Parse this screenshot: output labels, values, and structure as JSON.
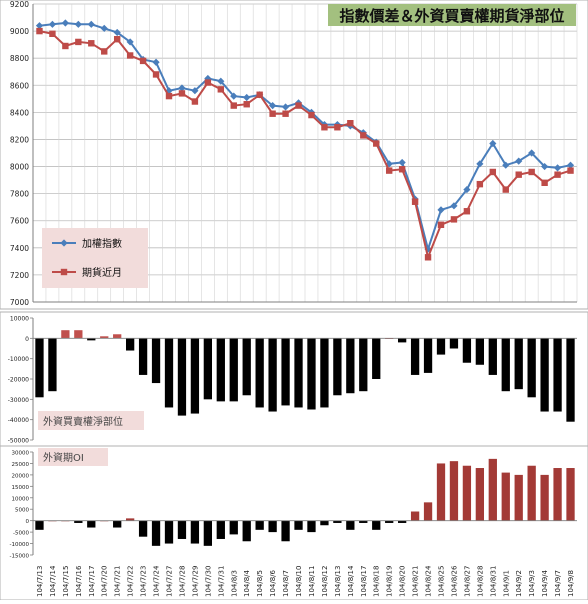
{
  "chart_data": [
    {
      "type": "line",
      "title": "指數價差＆外資買賣權期貨淨部位",
      "x": [
        "104/7/13",
        "104/7/14",
        "104/7/15",
        "104/7/16",
        "104/7/17",
        "104/7/20",
        "104/7/21",
        "104/7/22",
        "104/7/23",
        "104/7/24",
        "104/7/27",
        "104/7/28",
        "104/7/29",
        "104/7/30",
        "104/7/31",
        "104/8/3",
        "104/8/4",
        "104/8/5",
        "104/8/6",
        "104/8/7",
        "104/8/10",
        "104/8/11",
        "104/8/12",
        "104/8/13",
        "104/8/14",
        "104/8/17",
        "104/8/18",
        "104/8/19",
        "104/8/20",
        "104/8/21",
        "104/8/24",
        "104/8/25",
        "104/8/26",
        "104/8/27",
        "104/8/28",
        "104/8/31",
        "104/9/1",
        "104/9/2",
        "104/9/3",
        "104/9/4",
        "104/9/7",
        "104/9/8"
      ],
      "ylim": [
        7000,
        9200
      ],
      "yticks": [
        7000,
        7200,
        7400,
        7600,
        7800,
        8000,
        8200,
        8400,
        8600,
        8800,
        9000,
        9200
      ],
      "grid": true,
      "legend_position": "left",
      "series": [
        {
          "name": "加權指數",
          "color": "#4a7ebb",
          "marker": "diamond",
          "values": [
            9040,
            9050,
            9060,
            9050,
            9050,
            9020,
            8990,
            8920,
            8790,
            8770,
            8560,
            8580,
            8560,
            8650,
            8630,
            8520,
            8510,
            8530,
            8450,
            8440,
            8470,
            8400,
            8310,
            8310,
            8300,
            8250,
            8180,
            8020,
            8030,
            7760,
            7390,
            7680,
            7710,
            7830,
            8020,
            8170,
            8010,
            8040,
            8100,
            8000,
            7990,
            8010
          ]
        },
        {
          "name": "期貨近月",
          "color": "#be4b48",
          "marker": "square",
          "values": [
            9000,
            8980,
            8890,
            8920,
            8910,
            8850,
            8940,
            8820,
            8780,
            8680,
            8520,
            8540,
            8480,
            8620,
            8570,
            8450,
            8460,
            8530,
            8390,
            8390,
            8450,
            8380,
            8290,
            8290,
            8320,
            8230,
            8170,
            7970,
            7980,
            7740,
            7330,
            7570,
            7610,
            7670,
            7870,
            7960,
            7830,
            7940,
            7960,
            7880,
            7940,
            7970
          ]
        }
      ]
    },
    {
      "type": "bar",
      "label": "外資買賣權淨部位",
      "ylim": [
        -50000,
        10000
      ],
      "yticks": [
        10000,
        0,
        -10000,
        -20000,
        -30000,
        -40000,
        -50000
      ],
      "series": [
        {
          "color_positive": "#c0504d",
          "color_negative": "#000000",
          "values": [
            -29000,
            -26000,
            4000,
            4000,
            -1000,
            1000,
            2000,
            -6000,
            -18000,
            -22000,
            -34000,
            -38000,
            -37000,
            -30000,
            -31000,
            -31000,
            -28000,
            -34000,
            -36000,
            -33000,
            -34000,
            -35000,
            -34000,
            -28000,
            -27000,
            -26000,
            -20000,
            0,
            -2000,
            -18000,
            -17000,
            -8000,
            -5000,
            -12000,
            -13000,
            -18000,
            -26000,
            -25000,
            -29000,
            -36000,
            -36000,
            -41000
          ]
        }
      ]
    },
    {
      "type": "bar",
      "label": "外資期OI",
      "ylim": [
        -15000,
        30000
      ],
      "yticks": [
        30000,
        25000,
        20000,
        15000,
        10000,
        5000,
        0,
        -5000,
        -10000,
        -15000
      ],
      "series": [
        {
          "color_positive": "#a33a36",
          "color_negative": "#000000",
          "values": [
            -4000,
            0,
            0,
            -1000,
            -3000,
            0,
            -3000,
            1000,
            -7000,
            -11000,
            -10000,
            -8000,
            -10000,
            -11000,
            -8000,
            -6000,
            -9000,
            -4000,
            -5000,
            -9000,
            -4000,
            -5000,
            -2000,
            -1000,
            -4000,
            -1000,
            -4000,
            -1000,
            -1000,
            4000,
            8000,
            25000,
            26000,
            24000,
            23000,
            27000,
            21000,
            20000,
            24000,
            20000,
            23000,
            23000
          ]
        }
      ]
    }
  ]
}
